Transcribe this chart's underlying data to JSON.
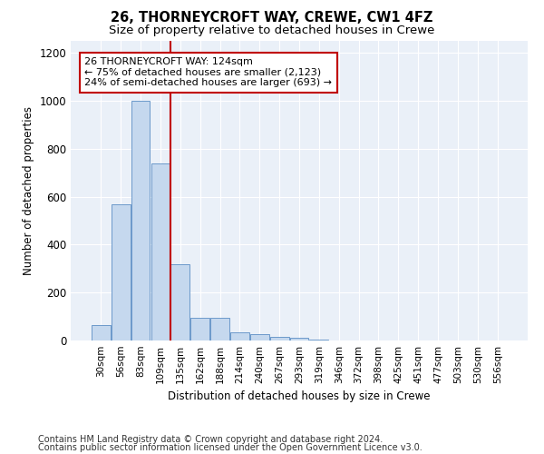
{
  "title": "26, THORNEYCROFT WAY, CREWE, CW1 4FZ",
  "subtitle": "Size of property relative to detached houses in Crewe",
  "xlabel": "Distribution of detached houses by size in Crewe",
  "ylabel": "Number of detached properties",
  "footer_line1": "Contains HM Land Registry data © Crown copyright and database right 2024.",
  "footer_line2": "Contains public sector information licensed under the Open Government Licence v3.0.",
  "categories": [
    "30sqm",
    "56sqm",
    "83sqm",
    "109sqm",
    "135sqm",
    "162sqm",
    "188sqm",
    "214sqm",
    "240sqm",
    "267sqm",
    "293sqm",
    "319sqm",
    "346sqm",
    "372sqm",
    "398sqm",
    "425sqm",
    "451sqm",
    "477sqm",
    "503sqm",
    "530sqm",
    "556sqm"
  ],
  "values": [
    65,
    570,
    1000,
    740,
    320,
    95,
    95,
    35,
    25,
    15,
    10,
    3,
    1,
    1,
    0,
    0,
    0,
    0,
    0,
    0,
    0
  ],
  "bar_color": "#c5d8ee",
  "bar_edge_color": "#5b8ec4",
  "vline_x": 3.5,
  "vline_color": "#c00000",
  "annotation_text": "26 THORNEYCROFT WAY: 124sqm\n← 75% of detached houses are smaller (2,123)\n24% of semi-detached houses are larger (693) →",
  "annotation_box_color": "#ffffff",
  "annotation_box_edge": "#c00000",
  "ylim": [
    0,
    1250
  ],
  "yticks": [
    0,
    200,
    400,
    600,
    800,
    1000,
    1200
  ],
  "bg_color": "#eaf0f8",
  "title_fontsize": 10.5,
  "subtitle_fontsize": 9.5,
  "annotation_fontsize": 8,
  "axis_fontsize": 8.5,
  "tick_fontsize": 7.5,
  "footer_fontsize": 7
}
